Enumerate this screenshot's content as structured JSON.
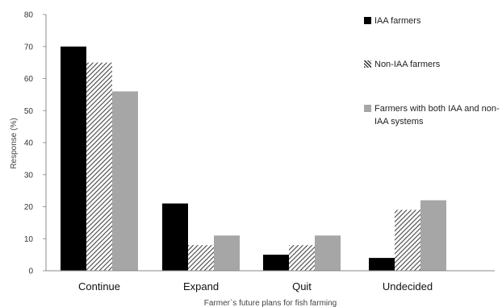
{
  "chart_data": {
    "type": "bar",
    "categories": [
      "Continue",
      "Expand",
      "Quit",
      "Undecided"
    ],
    "series": [
      {
        "name": "IAA farmers",
        "values": [
          70,
          21,
          5,
          4
        ],
        "color": "#000000",
        "pattern": "solid"
      },
      {
        "name": "Non-IAA farmers",
        "values": [
          65,
          8,
          8,
          19
        ],
        "color": "#444444",
        "pattern": "diagonal-hatch"
      },
      {
        "name": "Farmers with both IAA and non-IAA systems",
        "values": [
          56,
          11,
          11,
          22
        ],
        "color": "#a6a6a6",
        "pattern": "solid"
      }
    ],
    "xlabel": "Farmer`s future plans for fish farming",
    "ylabel": "Response (%)",
    "ylim": [
      0,
      80
    ],
    "yticks": [
      0,
      10,
      20,
      30,
      40,
      50,
      60,
      70,
      80
    ],
    "grid": false,
    "legend_position": "right"
  },
  "legend": {
    "items": [
      {
        "label": "IAA farmers",
        "swatch": "solid-black"
      },
      {
        "label": "Non-IAA farmers",
        "swatch": "hatched"
      },
      {
        "label": "Farmers with both IAA and non-IAA systems",
        "swatch": "solid-gray"
      }
    ]
  }
}
